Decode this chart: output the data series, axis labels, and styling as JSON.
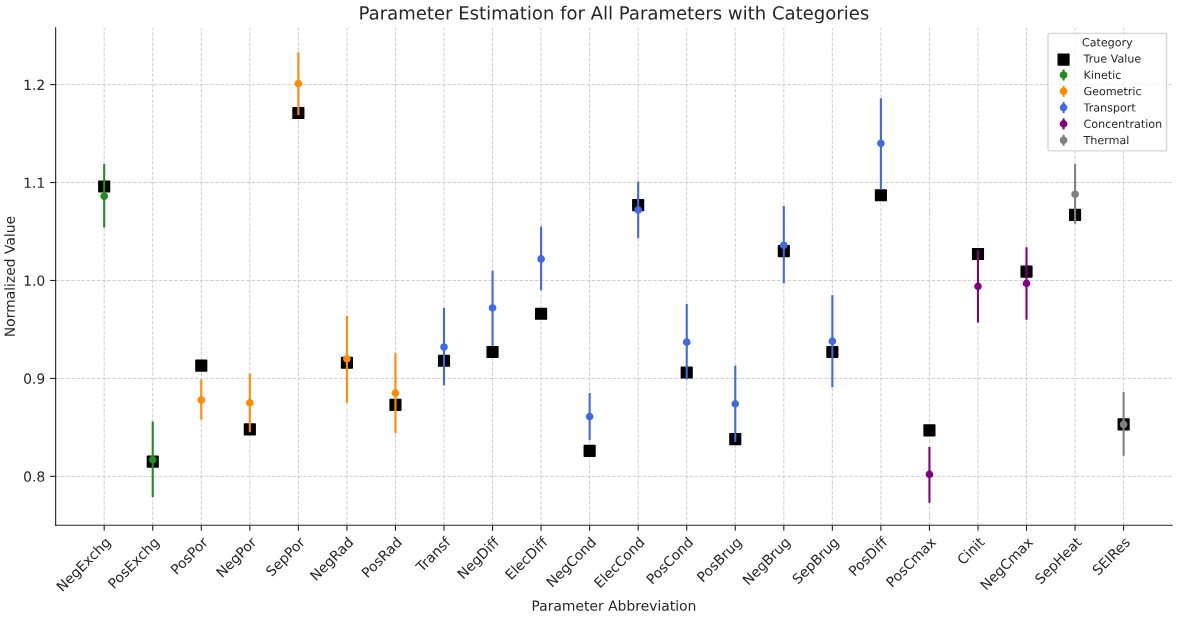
{
  "chart_data": {
    "type": "scatter",
    "title": "Parameter Estimation for All Parameters with Categories",
    "xlabel": "Parameter Abbreviation",
    "ylabel": "Normalized Value",
    "legend_title": "Category",
    "legend": "top right",
    "grid": true,
    "categories": [
      "NegExchg",
      "PosExchg",
      "PosPor",
      "NegPor",
      "SepPor",
      "NegRad",
      "PosRad",
      "Transf",
      "NegDiff",
      "ElecDiff",
      "NegCond",
      "ElecCond",
      "PosCond",
      "PosBrug",
      "NegBrug",
      "SepBrug",
      "PosDiff",
      "PosCmax",
      "Cinit",
      "NegCmax",
      "SepHeat",
      "SEIRes"
    ],
    "ylim": [
      0.75,
      1.258
    ],
    "yticks": [
      0.8,
      0.9,
      {
        "value": 1.0,
        "label": "1.0"
      },
      1.1,
      1.2
    ],
    "series": [
      {
        "name": "True Value",
        "color": "#000000",
        "marker": "square",
        "values": [
          1.096,
          0.815,
          0.913,
          0.848,
          1.171,
          0.916,
          0.873,
          0.918,
          0.927,
          0.966,
          0.826,
          1.077,
          0.906,
          0.838,
          1.03,
          0.927,
          1.087,
          0.847,
          1.027,
          1.009,
          1.067,
          0.853
        ]
      },
      {
        "name": "Kinetic",
        "color": "#228b22",
        "marker": "circle",
        "values": [
          1.086,
          0.817,
          null,
          null,
          null,
          null,
          null,
          null,
          null,
          null,
          null,
          null,
          null,
          null,
          null,
          null,
          null,
          null,
          null,
          null,
          null,
          null
        ],
        "errors": [
          [
            1.054,
            1.119
          ],
          [
            0.779,
            0.856
          ],
          null,
          null,
          null,
          null,
          null,
          null,
          null,
          null,
          null,
          null,
          null,
          null,
          null,
          null,
          null,
          null,
          null,
          null,
          null,
          null
        ]
      },
      {
        "name": "Geometric",
        "color": "#ff8c00",
        "marker": "circle",
        "values": [
          null,
          null,
          0.878,
          0.875,
          1.201,
          0.92,
          0.885,
          null,
          null,
          null,
          null,
          null,
          null,
          null,
          null,
          null,
          null,
          null,
          null,
          null,
          null,
          null
        ],
        "errors": [
          null,
          null,
          [
            0.858,
            0.899
          ],
          0.03,
          0.032,
          [
            0.875,
            0.964
          ],
          [
            0.844,
            0.926
          ],
          null,
          null,
          null,
          null,
          null,
          null,
          null,
          null,
          null,
          null,
          null,
          null,
          null,
          null,
          null
        ]
      },
      {
        "name": "Transport",
        "color": "#4169e1",
        "marker": "circle",
        "values": [
          null,
          null,
          null,
          null,
          null,
          null,
          null,
          0.932,
          0.972,
          1.022,
          0.861,
          1.072,
          0.937,
          0.874,
          1.036,
          0.938,
          1.14,
          null,
          null,
          null,
          null,
          null
        ],
        "errors": [
          null,
          null,
          null,
          null,
          null,
          null,
          null,
          [
            0.893,
            0.972
          ],
          [
            0.933,
            1.01
          ],
          [
            0.99,
            1.055
          ],
          [
            0.837,
            0.885
          ],
          [
            1.043,
            1.101
          ],
          [
            0.899,
            0.976
          ],
          [
            0.835,
            0.913
          ],
          [
            0.997,
            1.076
          ],
          [
            0.891,
            0.985
          ],
          [
            1.093,
            1.186
          ],
          null,
          null,
          null,
          null,
          null
        ]
      },
      {
        "name": "Concentration",
        "color": "#800080",
        "marker": "circle",
        "values": [
          null,
          null,
          null,
          null,
          null,
          null,
          null,
          null,
          null,
          null,
          null,
          null,
          null,
          null,
          null,
          null,
          null,
          0.802,
          0.994,
          0.997,
          null,
          null
        ],
        "errors": [
          null,
          null,
          null,
          null,
          null,
          null,
          null,
          null,
          null,
          null,
          null,
          null,
          null,
          null,
          null,
          null,
          null,
          [
            0.773,
            0.83
          ],
          [
            0.957,
            1.031
          ],
          [
            0.96,
            1.034
          ],
          null,
          null
        ]
      },
      {
        "name": "Thermal",
        "color": "#808080",
        "marker": "circle",
        "values": [
          null,
          null,
          null,
          null,
          null,
          null,
          null,
          null,
          null,
          null,
          null,
          null,
          null,
          null,
          null,
          null,
          null,
          null,
          null,
          null,
          1.088,
          0.853
        ],
        "errors": [
          null,
          null,
          null,
          null,
          null,
          null,
          null,
          null,
          null,
          null,
          null,
          null,
          null,
          null,
          null,
          null,
          null,
          null,
          null,
          null,
          [
            1.058,
            1.119
          ],
          [
            0.821,
            0.886
          ]
        ]
      }
    ]
  }
}
